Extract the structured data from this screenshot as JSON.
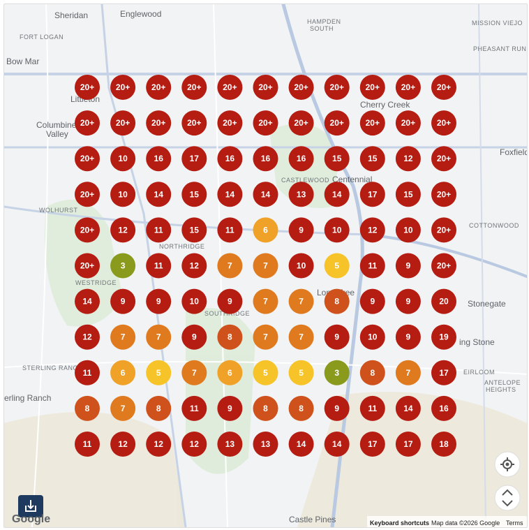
{
  "places": [
    "Sheridan",
    "Englewood",
    "HAMPDEN",
    "SOUTH",
    "MISSION VIEJO",
    "FORT LOGAN",
    "PHEASANT RUN",
    "Bow Mar",
    "Littleton",
    "Cherry Creek",
    "Columbine",
    "Valley",
    "Foxfield",
    "Centennial",
    "CASTLEWOOD",
    "WOLHURST",
    "COTTONWOOD",
    "NORTHRIDGE",
    "WESTRIDGE",
    "Lone Tree",
    "Stonegate",
    "SOUTHRIDGE",
    "STERLING RANCH",
    "erling Ranch",
    "ing Stone",
    "EIRLOOM",
    "ANTELOPE",
    "HEIGHTS",
    "Castle Pines"
  ],
  "grid": [
    [
      "20+",
      "20+",
      "20+",
      "20+",
      "20+",
      "20+",
      "20+",
      "20+",
      "20+",
      "20+",
      "20+"
    ],
    [
      "20+",
      "20+",
      "20+",
      "20+",
      "20+",
      "20+",
      "20+",
      "20+",
      "20+",
      "20+",
      "20+"
    ],
    [
      "20+",
      "10",
      "16",
      "17",
      "16",
      "16",
      "16",
      "15",
      "15",
      "12",
      "20+"
    ],
    [
      "20+",
      "10",
      "14",
      "15",
      "14",
      "14",
      "13",
      "14",
      "17",
      "15",
      "20+"
    ],
    [
      "20+",
      "12",
      "11",
      "15",
      "11",
      "6",
      "9",
      "10",
      "12",
      "10",
      "20+"
    ],
    [
      "20+",
      "3",
      "11",
      "12",
      "7",
      "7",
      "10",
      "5",
      "11",
      "9",
      "20+"
    ],
    [
      "14",
      "9",
      "9",
      "10",
      "9",
      "7",
      "7",
      "8",
      "9",
      "9",
      "20"
    ],
    [
      "12",
      "7",
      "7",
      "9",
      "8",
      "7",
      "7",
      "9",
      "10",
      "9",
      "19"
    ],
    [
      "11",
      "6",
      "5",
      "7",
      "6",
      "5",
      "5",
      "3",
      "8",
      "7",
      "17"
    ],
    [
      "8",
      "7",
      "8",
      "11",
      "9",
      "8",
      "8",
      "9",
      "11",
      "14",
      "16"
    ],
    [
      "11",
      "12",
      "12",
      "12",
      "13",
      "13",
      "14",
      "14",
      "17",
      "17",
      "18"
    ]
  ],
  "footer": {
    "logo": "Google",
    "shortcuts": "Keyboard shortcuts",
    "map_data": "Map data ©2026 Google",
    "terms": "Terms"
  }
}
